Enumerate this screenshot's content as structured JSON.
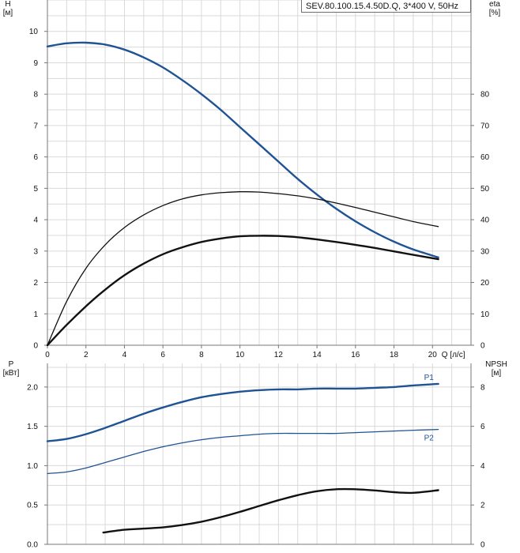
{
  "chart_data": [
    {
      "type": "line",
      "name": "top",
      "legend": "SEV.80.100.15.4.50D.Q, 3*400 V, 50Hz",
      "xlabel": "Q [л/с]",
      "ylabel_left": "H\n[м]",
      "ylabel_right": "eta\n[%]",
      "xlim": [
        0,
        22
      ],
      "x_ticks": [
        0,
        2,
        4,
        6,
        8,
        10,
        12,
        14,
        16,
        18,
        20
      ],
      "ylim_left": [
        0,
        11
      ],
      "y_ticks_left": [
        0,
        1,
        2,
        3,
        4,
        5,
        6,
        7,
        8,
        9,
        10
      ],
      "ylim_right": [
        0,
        110
      ],
      "y_ticks_right": [
        0,
        10,
        20,
        30,
        40,
        50,
        60,
        70,
        80
      ],
      "grid": true,
      "series": [
        {
          "axis": "left",
          "color": "#1f5394",
          "width": 2.4,
          "x": [
            0,
            1,
            2,
            3,
            4,
            5,
            6,
            7,
            8,
            9,
            10,
            11,
            12,
            13,
            14,
            15,
            16,
            17,
            18,
            19,
            20.3
          ],
          "y": [
            9.52,
            9.62,
            9.64,
            9.58,
            9.42,
            9.17,
            8.85,
            8.45,
            8.0,
            7.5,
            6.95,
            6.4,
            5.85,
            5.3,
            4.8,
            4.35,
            3.95,
            3.6,
            3.3,
            3.05,
            2.8
          ]
        },
        {
          "axis": "right",
          "color": "#111111",
          "width": 1.3,
          "x": [
            0,
            1,
            2,
            3,
            4,
            5,
            6,
            7,
            8,
            9,
            10,
            11,
            12,
            13,
            14,
            15,
            16,
            17,
            18,
            19,
            20.3
          ],
          "y": [
            0,
            14,
            24.5,
            32,
            37.5,
            41.5,
            44.5,
            46.6,
            47.9,
            48.6,
            48.9,
            48.8,
            48.3,
            47.6,
            46.6,
            45.3,
            43.9,
            42.4,
            40.9,
            39.4,
            37.8
          ]
        },
        {
          "axis": "left",
          "color": "#111111",
          "width": 2.4,
          "x": [
            0,
            1,
            2,
            3,
            4,
            5,
            6,
            7,
            8,
            9,
            10,
            11,
            12,
            13,
            14,
            15,
            16,
            17,
            18,
            19,
            20.3
          ],
          "y": [
            0,
            0.65,
            1.24,
            1.77,
            2.23,
            2.6,
            2.9,
            3.12,
            3.29,
            3.4,
            3.47,
            3.49,
            3.48,
            3.44,
            3.37,
            3.29,
            3.2,
            3.1,
            2.99,
            2.88,
            2.74
          ]
        }
      ]
    },
    {
      "type": "line",
      "name": "bottom",
      "ylabel_left": "P\n[кВт]",
      "ylabel_right": "NPSH\n[м]",
      "xlim": [
        0,
        22
      ],
      "ylim_left": [
        0,
        2.3
      ],
      "y_ticks_left": [
        "0.0",
        "0.5",
        "1.0",
        "1.5",
        "2.0"
      ],
      "ylim_right": [
        0,
        9.2
      ],
      "y_ticks_right": [
        0,
        2,
        4,
        6,
        8
      ],
      "grid": true,
      "series": [
        {
          "name": "P1",
          "axis": "left",
          "color": "#1f5394",
          "width": 2.4,
          "x": [
            0,
            1,
            2,
            3,
            4,
            5,
            6,
            7,
            8,
            9,
            10,
            11,
            12,
            13,
            14,
            15,
            16,
            17,
            18,
            19,
            20.3
          ],
          "y": [
            1.31,
            1.34,
            1.4,
            1.48,
            1.57,
            1.66,
            1.74,
            1.81,
            1.87,
            1.91,
            1.94,
            1.96,
            1.97,
            1.97,
            1.98,
            1.98,
            1.98,
            1.99,
            2.0,
            2.02,
            2.04
          ]
        },
        {
          "name": "P2",
          "axis": "left",
          "color": "#1f5394",
          "width": 1.3,
          "x": [
            0,
            1,
            2,
            3,
            4,
            5,
            6,
            7,
            8,
            9,
            10,
            11,
            12,
            13,
            14,
            15,
            16,
            17,
            18,
            19,
            20.3
          ],
          "y": [
            0.9,
            0.92,
            0.97,
            1.04,
            1.11,
            1.18,
            1.24,
            1.29,
            1.33,
            1.36,
            1.38,
            1.4,
            1.41,
            1.41,
            1.41,
            1.41,
            1.42,
            1.43,
            1.44,
            1.45,
            1.46
          ]
        },
        {
          "axis": "right",
          "color": "#111111",
          "width": 2.4,
          "x": [
            2.9,
            4,
            5,
            6,
            7,
            8,
            9,
            10,
            11,
            12,
            13,
            14,
            15,
            16,
            17,
            18,
            19,
            20.3
          ],
          "y": [
            0.6,
            0.74,
            0.8,
            0.86,
            0.98,
            1.15,
            1.38,
            1.65,
            1.95,
            2.24,
            2.5,
            2.7,
            2.8,
            2.8,
            2.74,
            2.65,
            2.62,
            2.75
          ]
        }
      ]
    }
  ]
}
